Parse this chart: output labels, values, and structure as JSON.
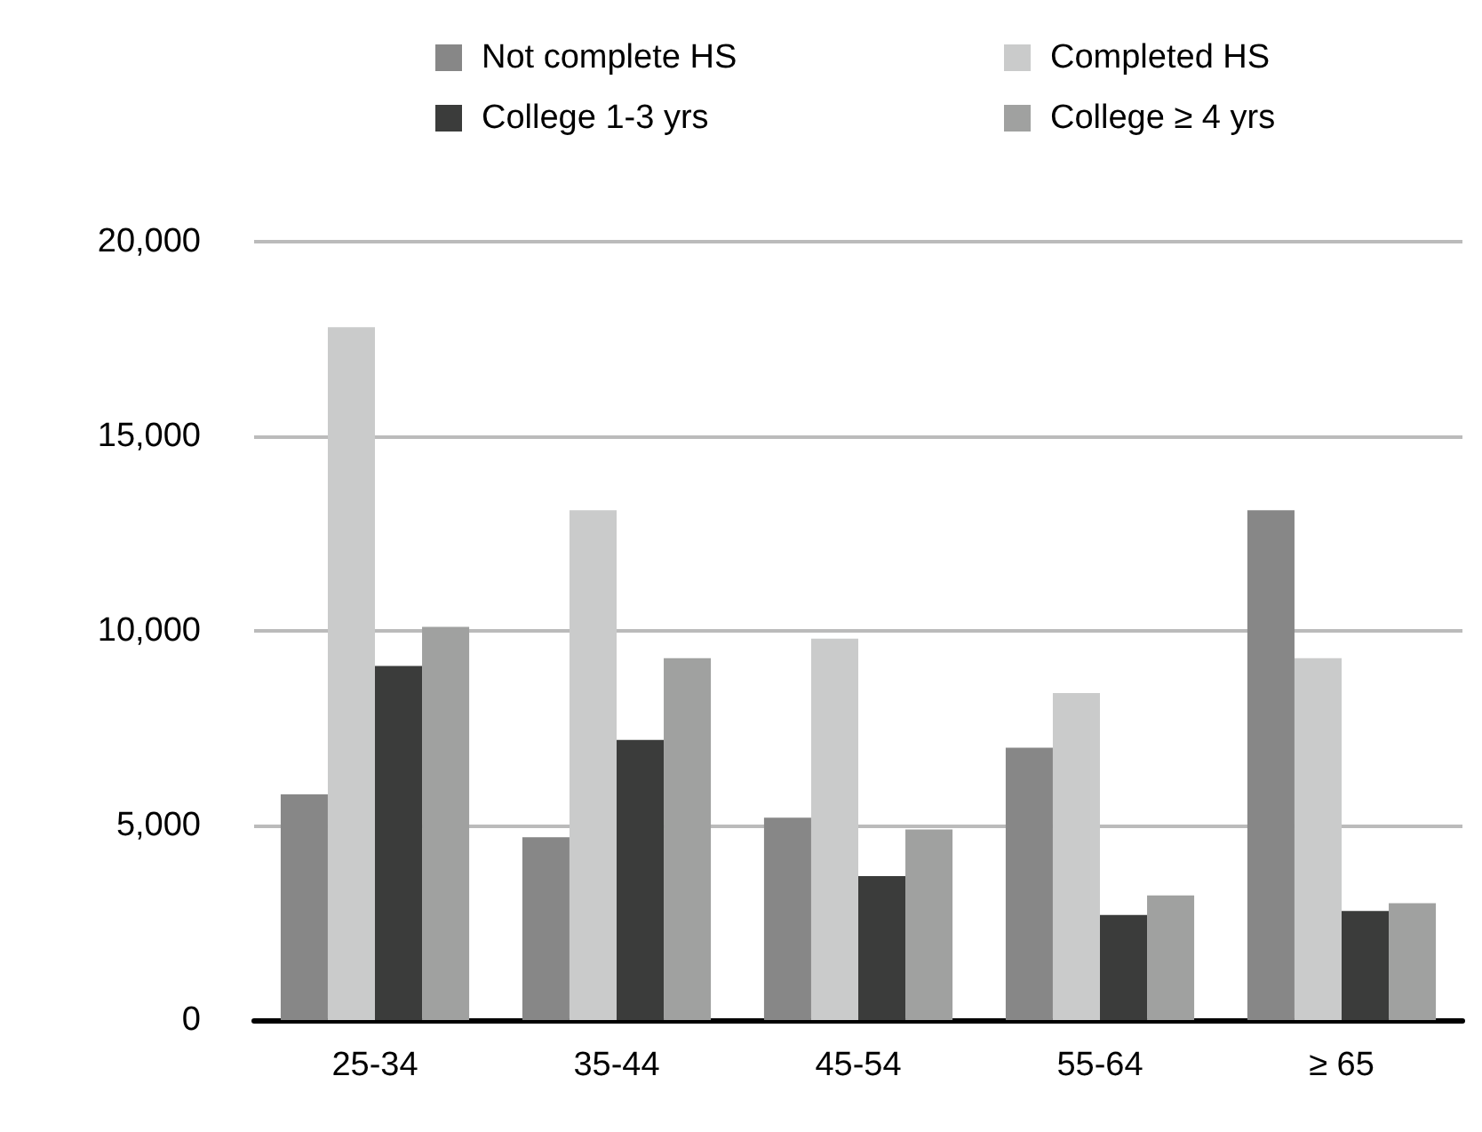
{
  "chart_data": {
    "type": "bar",
    "categories": [
      "25-34",
      "35-44",
      "45-54",
      "55-64",
      "≥ 65"
    ],
    "series": [
      {
        "name": "Not complete HS",
        "color": "#878787",
        "values": [
          5800,
          4700,
          5200,
          7000,
          13100
        ]
      },
      {
        "name": "Completed HS",
        "color": "#cacbcb",
        "values": [
          17800,
          13100,
          9800,
          8400,
          9300
        ]
      },
      {
        "name": "College 1-3 yrs",
        "color": "#3b3c3b",
        "values": [
          9100,
          7200,
          3700,
          2700,
          2800
        ]
      },
      {
        "name": "College ≥ 4 yrs",
        "color": "#a0a1a0",
        "values": [
          10100,
          9300,
          4900,
          3200,
          3000
        ]
      }
    ],
    "ylim": [
      0,
      20000
    ],
    "yticks": [
      0,
      {
        "value": 5000,
        "label": "5,000"
      },
      {
        "value": 10000,
        "label": "10,000"
      },
      {
        "value": 15000,
        "label": "15,000"
      },
      {
        "value": 20000,
        "label": "20,000"
      }
    ],
    "grid": "y",
    "legend": "top"
  }
}
